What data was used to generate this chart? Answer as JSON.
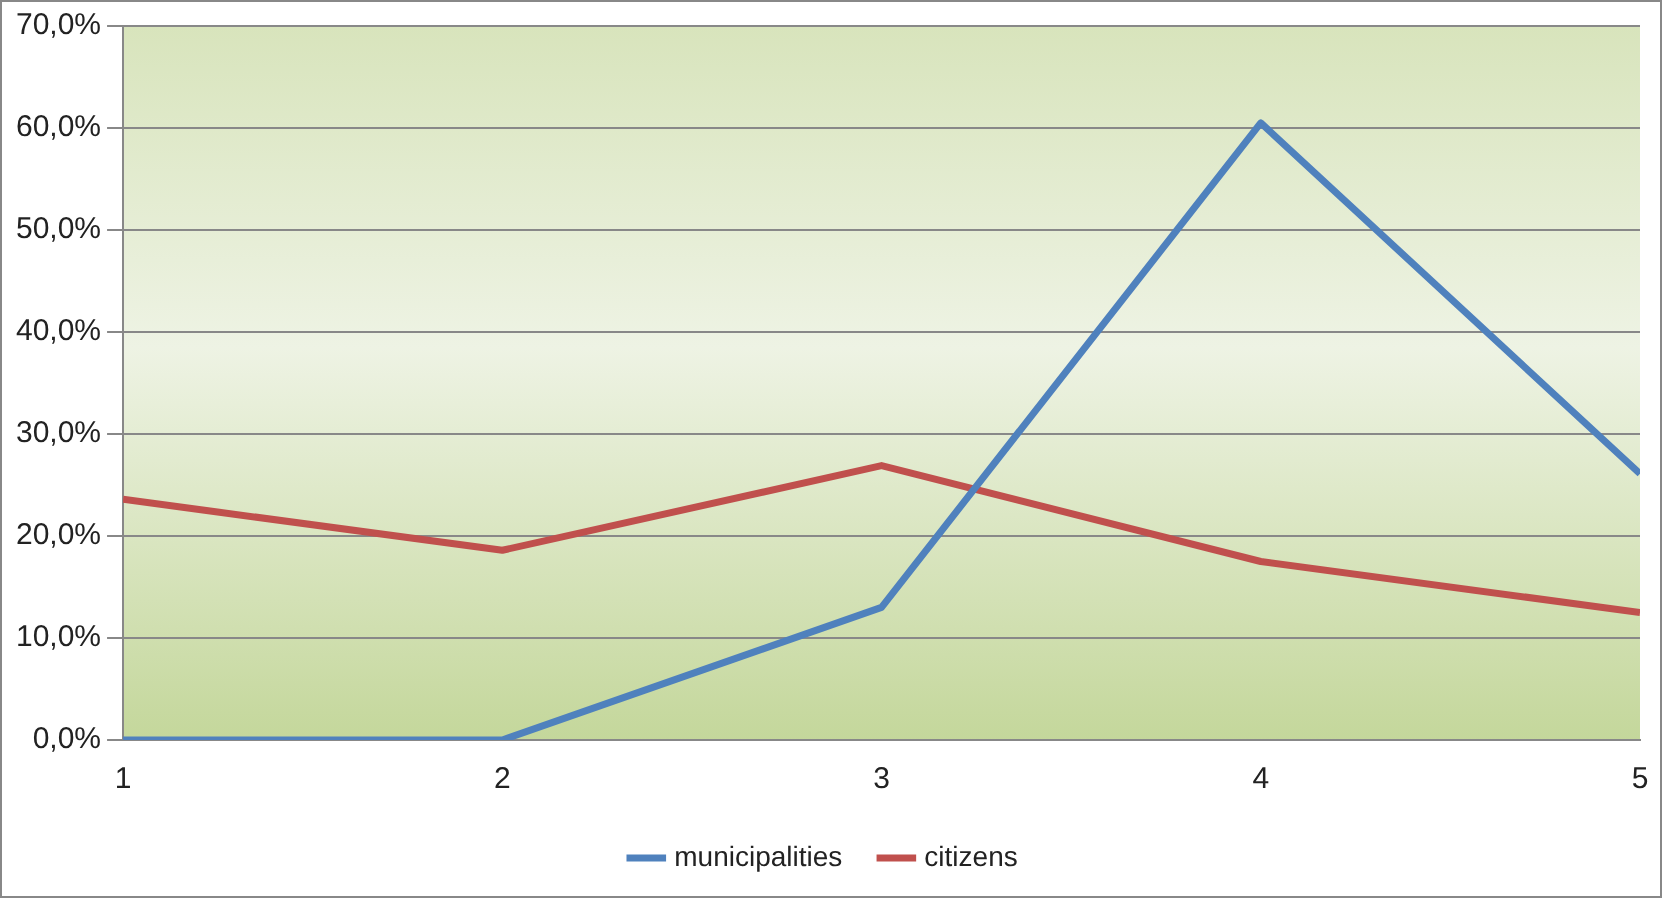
{
  "chart_data": {
    "type": "line",
    "x": [
      1,
      2,
      3,
      4,
      5
    ],
    "xlim": [
      1,
      5
    ],
    "xticks": [
      1,
      2,
      3,
      4,
      5
    ],
    "ylim": [
      0,
      70
    ],
    "yticks": [
      {
        "value": 0,
        "label": "0,0%"
      },
      {
        "value": 10,
        "label": "10,0%"
      },
      {
        "value": 20,
        "label": "20,0%"
      },
      {
        "value": 30,
        "label": "30,0%"
      },
      {
        "value": 40,
        "label": "40,0%"
      },
      {
        "value": 50,
        "label": "50,0%"
      },
      {
        "value": 60,
        "label": "60,0%"
      },
      {
        "value": 70,
        "label": "70,0%"
      }
    ],
    "series": [
      {
        "name": "municipalities",
        "color": "#4f81bd",
        "values": [
          0,
          0,
          13.0,
          60.5,
          26.1
        ]
      },
      {
        "name": "citizens",
        "color": "#c0504d",
        "values": [
          23.6,
          18.6,
          26.9,
          17.5,
          12.5
        ]
      }
    ],
    "grid": "y",
    "legend": "bottom",
    "marker": "none",
    "line_style": "solid"
  }
}
